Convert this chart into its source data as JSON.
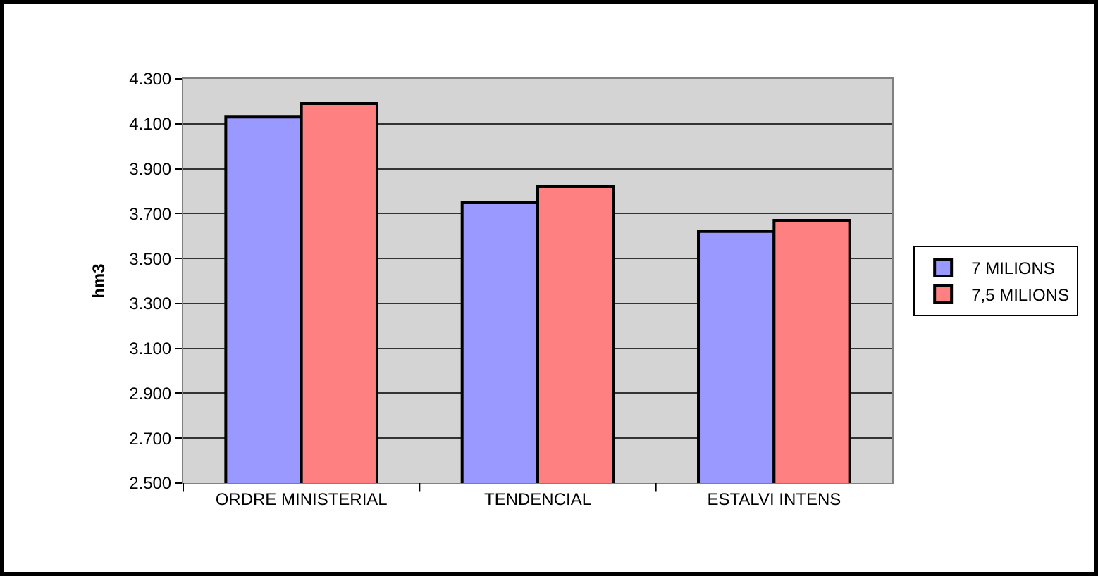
{
  "chart_data": {
    "type": "bar",
    "ylabel": "hm3",
    "categories": [
      "ORDRE MINISTERIAL",
      "TENDENCIAL",
      "ESTALVI INTENS"
    ],
    "series": [
      {
        "name": "7 MILIONS",
        "color": "#9999ff",
        "values": [
          4130,
          3750,
          3620
        ]
      },
      {
        "name": "7,5 MILIONS",
        "color": "#ff8080",
        "values": [
          4190,
          3820,
          3670
        ]
      }
    ],
    "ylim": [
      2500,
      4300
    ],
    "yticks": [
      {
        "value": 2500,
        "label": "2.500"
      },
      {
        "value": 2700,
        "label": "2.700"
      },
      {
        "value": 2900,
        "label": "2.900"
      },
      {
        "value": 3100,
        "label": "3.100"
      },
      {
        "value": 3300,
        "label": "3.300"
      },
      {
        "value": 3500,
        "label": "3.500"
      },
      {
        "value": 3700,
        "label": "3.700"
      },
      {
        "value": 3900,
        "label": "3.900"
      },
      {
        "value": 4100,
        "label": "4.100"
      },
      {
        "value": 4300,
        "label": "4.300"
      }
    ],
    "grid": "y",
    "legend": "right"
  }
}
